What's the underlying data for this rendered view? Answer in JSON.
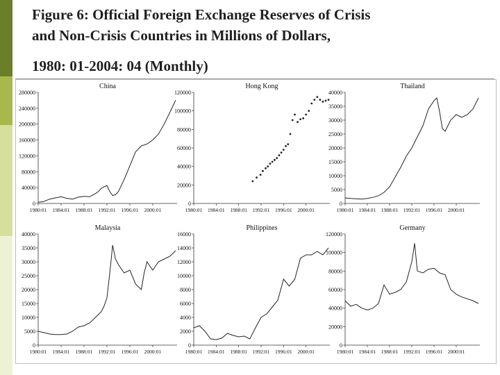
{
  "title": {
    "line1": "Figure 6: Official Foreign Exchange Reserves of Crisis",
    "line2": "and Non-Crisis Countries in Millions of Dollars,",
    "line3": "1980: 01-2004: 04 (Monthly)"
  },
  "colors": {
    "bar_dark": "#6b7f2a",
    "bar_mid": "#a8b84a",
    "bar_light": "#d7df9c",
    "line": "#222222"
  },
  "chart_data": [
    {
      "type": "line",
      "title": "China",
      "xlabel": "",
      "ylabel": "",
      "xlim": [
        1980.0,
        2004.25
      ],
      "ylim": [
        0,
        280000
      ],
      "yticks": [
        0,
        40000,
        80000,
        120000,
        160000,
        200000,
        240000,
        280000
      ],
      "xticks": [
        1980,
        1984,
        1988,
        1992,
        1996,
        2000
      ],
      "xtick_labels": [
        "1980:01",
        "1984:01",
        "1988:01",
        "1992:01",
        "1996:01",
        "2000:01"
      ],
      "x": [
        1980.0,
        1981.0,
        1982.0,
        1983.0,
        1984.0,
        1985.0,
        1986.0,
        1987.0,
        1988.0,
        1989.0,
        1990.0,
        1990.5,
        1991.0,
        1991.5,
        1992.0,
        1992.5,
        1993.0,
        1993.5,
        1994.0,
        1994.5,
        1995.0,
        1996.0,
        1997.0,
        1998.0,
        1999.0,
        2000.0,
        2001.0,
        2002.0,
        2003.0,
        2004.0
      ],
      "y": [
        3000,
        5000,
        11000,
        14000,
        17000,
        13000,
        11000,
        16000,
        18000,
        17000,
        25000,
        30000,
        38000,
        42000,
        45000,
        30000,
        20000,
        22000,
        30000,
        45000,
        60000,
        95000,
        130000,
        145000,
        150000,
        160000,
        175000,
        200000,
        230000,
        260000
      ]
    },
    {
      "type": "scatter",
      "title": "Hong Kong",
      "xlabel": "",
      "ylabel": "",
      "xlim": [
        1980.0,
        2004.25
      ],
      "ylim": [
        0,
        120000
      ],
      "yticks": [
        0,
        20000,
        40000,
        60000,
        80000,
        100000,
        120000
      ],
      "xticks": [
        1980,
        1984,
        1988,
        1992,
        1996,
        2000
      ],
      "xtick_labels": [
        "1980:01",
        "1984:01",
        "1988:01",
        "1992:01",
        "1996:01",
        "2000:01"
      ],
      "x": [
        1990.5,
        1991.2,
        1991.9,
        1992.3,
        1992.8,
        1993.2,
        1993.6,
        1994.0,
        1994.4,
        1994.8,
        1995.2,
        1995.6,
        1996.0,
        1996.4,
        1996.8,
        1997.2,
        1997.6,
        1998.0,
        1998.5,
        1999.0,
        1999.5,
        2000.0,
        2000.5,
        2001.0,
        2001.5,
        2002.0,
        2002.5,
        2003.0,
        2003.5,
        2004.0
      ],
      "y": [
        24000,
        28000,
        31000,
        35000,
        38000,
        40000,
        43000,
        45000,
        47000,
        49000,
        52000,
        55000,
        58000,
        62000,
        64000,
        75000,
        90000,
        96000,
        88000,
        91000,
        92000,
        96000,
        100000,
        108000,
        112000,
        115000,
        112000,
        110000,
        111000,
        112000
      ]
    },
    {
      "type": "line",
      "title": "Thailand",
      "xlabel": "",
      "ylabel": "",
      "xlim": [
        1980.0,
        2004.25
      ],
      "ylim": [
        0,
        40000
      ],
      "yticks": [
        0,
        5000,
        10000,
        15000,
        20000,
        25000,
        30000,
        35000,
        40000
      ],
      "xticks": [
        1980,
        1984,
        1988,
        1992,
        1996,
        2000
      ],
      "xtick_labels": [
        "1980:01",
        "1984:01",
        "1988:01",
        "1992:01",
        "1996:01",
        "2000:01"
      ],
      "x": [
        1980.0,
        1981.0,
        1982.0,
        1983.0,
        1984.0,
        1985.0,
        1986.0,
        1987.0,
        1988.0,
        1989.0,
        1990.0,
        1991.0,
        1992.0,
        1993.0,
        1994.0,
        1995.0,
        1996.0,
        1996.5,
        1997.0,
        1997.5,
        1998.0,
        1998.5,
        1999.0,
        2000.0,
        2001.0,
        2002.0,
        2003.0,
        2004.0
      ],
      "y": [
        2000,
        1800,
        1700,
        1600,
        1800,
        2200,
        2800,
        4000,
        6000,
        9500,
        13000,
        17000,
        20000,
        24000,
        28000,
        34000,
        37000,
        38000,
        33000,
        27000,
        26000,
        28000,
        30000,
        32000,
        31000,
        32000,
        34000,
        38000
      ]
    },
    {
      "type": "line",
      "title": "Malaysia",
      "xlabel": "",
      "ylabel": "",
      "xlim": [
        1980.0,
        2004.25
      ],
      "ylim": [
        0,
        40000
      ],
      "yticks": [
        0,
        5000,
        10000,
        15000,
        20000,
        25000,
        30000,
        35000,
        40000
      ],
      "xticks": [
        1980,
        1984,
        1988,
        1992,
        1996,
        2000
      ],
      "xtick_labels": [
        "1980:01",
        "1984:01",
        "1988:01",
        "1992:01",
        "1996:01",
        "2000:01"
      ],
      "x": [
        1980.0,
        1981.0,
        1982.0,
        1983.0,
        1984.0,
        1985.0,
        1986.0,
        1987.0,
        1988.0,
        1989.0,
        1990.0,
        1991.0,
        1991.5,
        1992.0,
        1992.5,
        1993.0,
        1993.5,
        1994.0,
        1995.0,
        1996.0,
        1997.0,
        1998.0,
        1998.5,
        1999.0,
        2000.0,
        2001.0,
        2002.0,
        2003.0,
        2004.0
      ],
      "y": [
        5000,
        4500,
        4000,
        3800,
        3800,
        4000,
        5000,
        6500,
        7000,
        8000,
        10000,
        12000,
        14000,
        17000,
        26000,
        36000,
        31000,
        29000,
        26000,
        27000,
        22000,
        20000,
        26000,
        30000,
        27000,
        30000,
        31000,
        32000,
        34000
      ]
    },
    {
      "type": "line",
      "title": "Philippines",
      "xlabel": "",
      "ylabel": "",
      "xlim": [
        1980.0,
        2004.25
      ],
      "ylim": [
        0,
        16000
      ],
      "yticks": [
        0,
        2000,
        4000,
        6000,
        8000,
        10000,
        12000,
        14000,
        16000
      ],
      "xticks": [
        1980,
        1984,
        1988,
        1992,
        1996,
        2000
      ],
      "xtick_labels": [
        "1980:01",
        "1984:01",
        "1988:01",
        "1992:01",
        "1996:01",
        "2000:01"
      ],
      "x": [
        1980.0,
        1981.0,
        1982.0,
        1983.0,
        1984.0,
        1985.0,
        1986.0,
        1987.0,
        1988.0,
        1989.0,
        1990.0,
        1991.0,
        1992.0,
        1993.0,
        1994.0,
        1995.0,
        1996.0,
        1997.0,
        1998.0,
        1999.0,
        2000.0,
        2001.0,
        2002.0,
        2003.0,
        2004.0
      ],
      "y": [
        2500,
        2800,
        2000,
        900,
        800,
        1000,
        1700,
        1400,
        1200,
        1300,
        900,
        2500,
        4000,
        4500,
        5500,
        6500,
        9500,
        8500,
        9500,
        12500,
        13000,
        13000,
        13500,
        13000,
        14000
      ]
    },
    {
      "type": "line",
      "title": "Germany",
      "xlabel": "",
      "ylabel": "",
      "xlim": [
        1980.0,
        2004.25
      ],
      "ylim": [
        0,
        120000
      ],
      "yticks": [
        0,
        20000,
        40000,
        60000,
        80000,
        100000,
        120000
      ],
      "xticks": [
        1980,
        1984,
        1988,
        1992,
        1996,
        2000
      ],
      "xtick_labels": [
        "1980:01",
        "1984:01",
        "1988:01",
        "1992:01",
        "1996:01",
        "2000:01"
      ],
      "x": [
        1980.0,
        1981.0,
        1982.0,
        1983.0,
        1984.0,
        1985.0,
        1986.0,
        1987.0,
        1988.0,
        1989.0,
        1990.0,
        1991.0,
        1992.0,
        1992.5,
        1993.0,
        1994.0,
        1995.0,
        1996.0,
        1997.0,
        1998.0,
        1999.0,
        2000.0,
        2001.0,
        2002.0,
        2003.0,
        2004.0
      ],
      "y": [
        48000,
        42000,
        44000,
        40000,
        38000,
        40000,
        45000,
        65000,
        55000,
        57000,
        60000,
        68000,
        90000,
        110000,
        80000,
        78000,
        82000,
        83000,
        78000,
        76000,
        60000,
        55000,
        52000,
        50000,
        48000,
        45000
      ]
    }
  ]
}
